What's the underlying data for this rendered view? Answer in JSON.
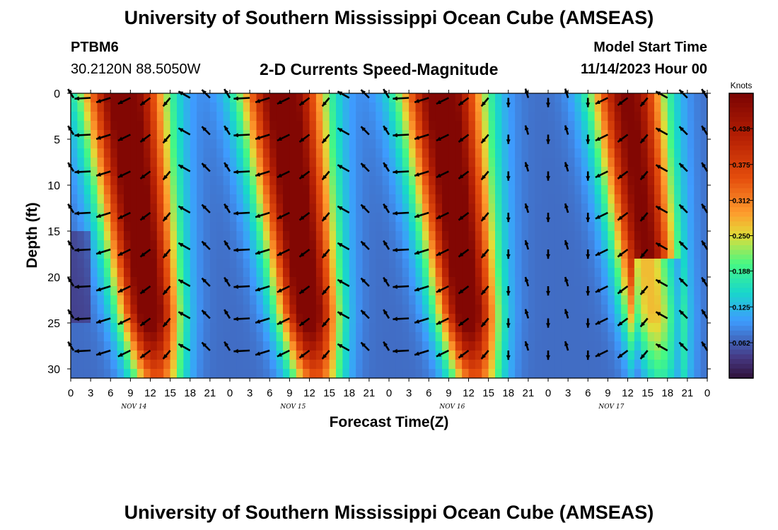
{
  "header": {
    "title": "University of Southern Mississippi Ocean Cube (AMSEAS)",
    "station": "PTBM6",
    "coords": "30.2120N  88.5050W",
    "plot_title": "2-D Currents Speed-Magnitude",
    "model_label": "Model Start Time",
    "model_time": "11/14/2023 Hour 00"
  },
  "footer": {
    "title": "University of Southern Mississippi Ocean Cube (AMSEAS)"
  },
  "chart_data": {
    "type": "heatmap",
    "title": "2-D Currents Speed-Magnitude",
    "xlabel": "Forecast Time(Z)",
    "ylabel": "Depth (ft)",
    "x_range_hours": [
      0,
      96
    ],
    "x_tick_step_hours": 3,
    "x_ticks": [
      "0",
      "3",
      "6",
      "9",
      "12",
      "15",
      "18",
      "21",
      "0",
      "3",
      "6",
      "9",
      "12",
      "15",
      "18",
      "21",
      "0",
      "3",
      "6",
      "9",
      "12",
      "15",
      "18",
      "21",
      "0",
      "3",
      "6",
      "9",
      "12",
      "15",
      "18",
      "21",
      "0"
    ],
    "day_labels": [
      {
        "label": "NOV 14",
        "hour": 9
      },
      {
        "label": "NOV 15",
        "hour": 33
      },
      {
        "label": "NOV 16",
        "hour": 57
      },
      {
        "label": "NOV 17",
        "hour": 81
      }
    ],
    "y_range": [
      0,
      31
    ],
    "y_ticks": [
      0,
      5,
      10,
      15,
      20,
      25,
      30
    ],
    "colorbar": {
      "unit": "Knots",
      "min": 0,
      "max": 0.5,
      "ticks": [
        "0.438",
        "0.375",
        "0.312",
        "0.250",
        "0.188",
        "0.125",
        "0.062"
      ],
      "tick_values": [
        0.438,
        0.375,
        0.312,
        0.25,
        0.188,
        0.125,
        0.062
      ]
    },
    "speed_peaks_hours": [
      8,
      32,
      56,
      84
    ],
    "speed_minima_hours": [
      0,
      21,
      46,
      70,
      93
    ],
    "vector_depths_ft": [
      0.5,
      4.5,
      8.5,
      13,
      17,
      21,
      24.5,
      28
    ],
    "vector_time_step_hours": 3
  }
}
